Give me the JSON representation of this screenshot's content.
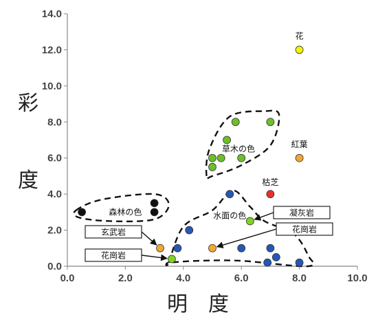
{
  "chart_data": {
    "type": "scatter",
    "xlabel": "明　度",
    "ylabel": "彩度",
    "xlim": [
      0,
      10
    ],
    "ylim": [
      0,
      14
    ],
    "x_ticks": [
      "0.0",
      "2.0",
      "4.0",
      "6.0",
      "8.0",
      "10.0"
    ],
    "y_ticks": [
      "0.0",
      "2.0",
      "4.0",
      "6.0",
      "8.0",
      "10.0",
      "12.0",
      "14.0"
    ],
    "grid": false,
    "colors": {
      "forest": "#111111",
      "grass": "#6dbf2a",
      "water": "#2457b8",
      "gold": "#f0a830",
      "red": "#e8302a",
      "yellow": "#f5f20a",
      "lime": "#7ed321"
    },
    "points": [
      {
        "x": 0.5,
        "y": 3.0,
        "color": "forest"
      },
      {
        "x": 3.0,
        "y": 3.5,
        "color": "forest"
      },
      {
        "x": 3.0,
        "y": 3.0,
        "color": "forest"
      },
      {
        "x": 5.8,
        "y": 8.0,
        "color": "grass"
      },
      {
        "x": 7.0,
        "y": 8.0,
        "color": "grass"
      },
      {
        "x": 5.5,
        "y": 7.0,
        "color": "grass"
      },
      {
        "x": 5.0,
        "y": 6.0,
        "color": "grass"
      },
      {
        "x": 5.3,
        "y": 6.0,
        "color": "grass"
      },
      {
        "x": 6.0,
        "y": 6.0,
        "color": "grass"
      },
      {
        "x": 5.0,
        "y": 5.5,
        "color": "grass"
      },
      {
        "x": 8.0,
        "y": 12.0,
        "color": "yellow"
      },
      {
        "x": 8.0,
        "y": 6.0,
        "color": "gold"
      },
      {
        "x": 7.0,
        "y": 4.0,
        "color": "red"
      },
      {
        "x": 5.6,
        "y": 4.0,
        "color": "water"
      },
      {
        "x": 4.2,
        "y": 2.0,
        "color": "water"
      },
      {
        "x": 3.8,
        "y": 1.0,
        "color": "water"
      },
      {
        "x": 6.0,
        "y": 1.0,
        "color": "water"
      },
      {
        "x": 7.0,
        "y": 1.0,
        "color": "water"
      },
      {
        "x": 7.2,
        "y": 0.5,
        "color": "water"
      },
      {
        "x": 6.9,
        "y": 0.2,
        "color": "water"
      },
      {
        "x": 8.0,
        "y": 0.2,
        "color": "water"
      },
      {
        "x": 6.3,
        "y": 2.5,
        "color": "lime"
      },
      {
        "x": 3.2,
        "y": 1.0,
        "color": "gold"
      },
      {
        "x": 5.0,
        "y": 1.0,
        "color": "gold"
      },
      {
        "x": 3.6,
        "y": 0.4,
        "color": "lime"
      }
    ],
    "clusters": [
      {
        "label": "森林の色",
        "label_at": [
          2.0,
          3.0
        ],
        "outline": [
          [
            0.3,
            3.1
          ],
          [
            1.2,
            3.7
          ],
          [
            3.0,
            4.0
          ],
          [
            3.5,
            3.4
          ],
          [
            3.0,
            2.6
          ],
          [
            1.5,
            2.5
          ],
          [
            0.4,
            2.7
          ]
        ]
      },
      {
        "label": "草木の色",
        "label_at": [
          5.9,
          6.5
        ],
        "outline": [
          [
            4.8,
            5.0
          ],
          [
            4.9,
            6.5
          ],
          [
            5.6,
            8.3
          ],
          [
            6.8,
            8.6
          ],
          [
            7.3,
            8.4
          ],
          [
            7.0,
            6.7
          ],
          [
            6.0,
            5.6
          ],
          [
            5.0,
            5.0
          ]
        ]
      },
      {
        "label": "水面の色",
        "label_at": [
          5.6,
          2.8
        ],
        "outline": [
          [
            3.5,
            0.2
          ],
          [
            4.0,
            2.2
          ],
          [
            5.0,
            3.1
          ],
          [
            5.7,
            4.2
          ],
          [
            6.3,
            3.3
          ],
          [
            6.8,
            2.5
          ],
          [
            7.8,
            1.8
          ],
          [
            8.3,
            0.6
          ],
          [
            8.3,
            0.0
          ],
          [
            6.0,
            0.3
          ],
          [
            4.5,
            0.3
          ],
          [
            3.5,
            0.2
          ]
        ]
      }
    ],
    "annotations": [
      {
        "text": "花",
        "x": 8.0,
        "y": 12.6
      },
      {
        "text": "紅葉",
        "x": 8.0,
        "y": 6.6
      },
      {
        "text": "枯芝",
        "x": 7.0,
        "y": 4.5
      }
    ],
    "boxed_labels": [
      {
        "text": "凝灰岩",
        "arrow_to": [
          6.3,
          2.5
        ]
      },
      {
        "text": "花崗岩",
        "arrow_to": [
          5.0,
          1.0
        ]
      },
      {
        "text": "玄武岩",
        "arrow_to": [
          3.2,
          1.0
        ]
      },
      {
        "text": "花崗岩",
        "arrow_to": [
          3.6,
          0.4
        ]
      }
    ]
  }
}
